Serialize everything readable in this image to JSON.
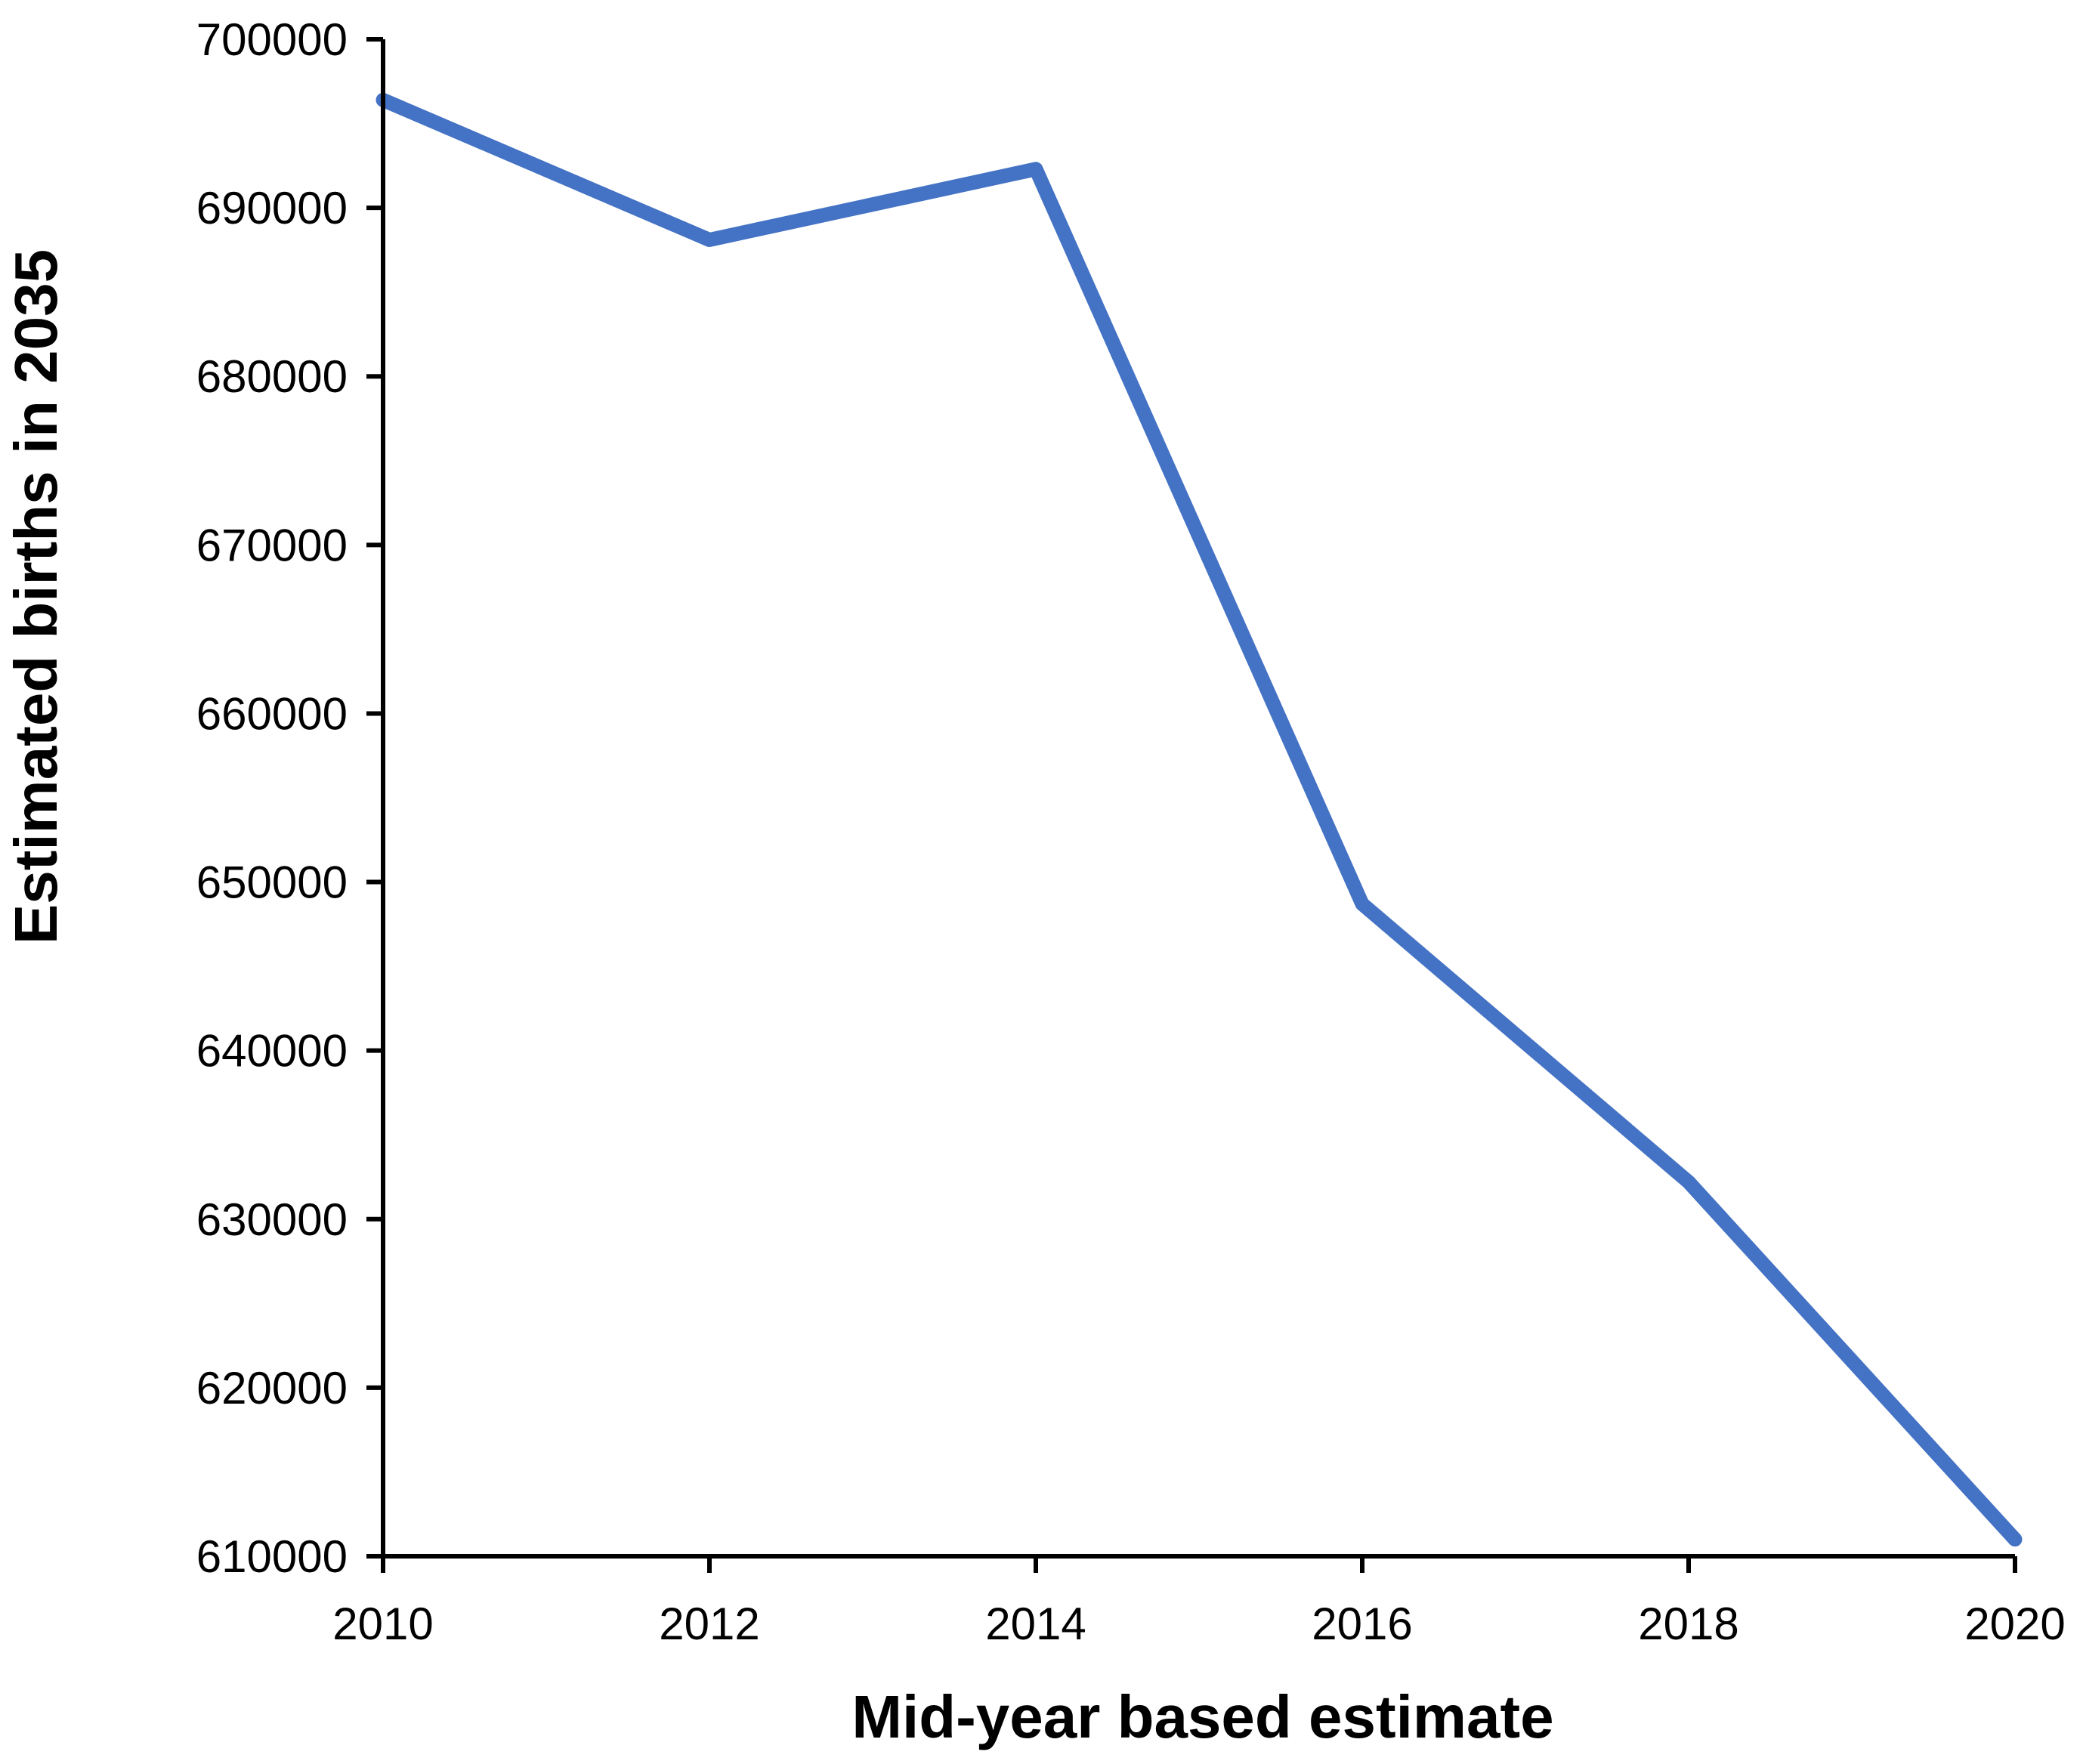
{
  "chart_data": {
    "type": "line",
    "categories": [
      2010,
      2012,
      2014,
      2016,
      2018,
      2020
    ],
    "series": [
      {
        "name": "Estimated births in 2035",
        "values": [
          696400,
          688100,
          692300,
          648700,
          632200,
          611000
        ],
        "color": "#4472C4"
      }
    ],
    "title": "",
    "xlabel": "Mid-year based estimate",
    "ylabel": "Estimated births in 2035",
    "xlim": [
      2010,
      2020
    ],
    "ylim": [
      610000,
      700000
    ],
    "xtick_step": 2,
    "ytick_step": 10000,
    "grid": false,
    "legend": "none",
    "axis_color": "#000000",
    "tick_labels_y": [
      "610000",
      "620000",
      "630000",
      "640000",
      "650000",
      "660000",
      "670000",
      "680000",
      "690000",
      "700000"
    ],
    "tick_labels_x": [
      "2010",
      "2012",
      "2014",
      "2016",
      "2018",
      "2020"
    ]
  }
}
